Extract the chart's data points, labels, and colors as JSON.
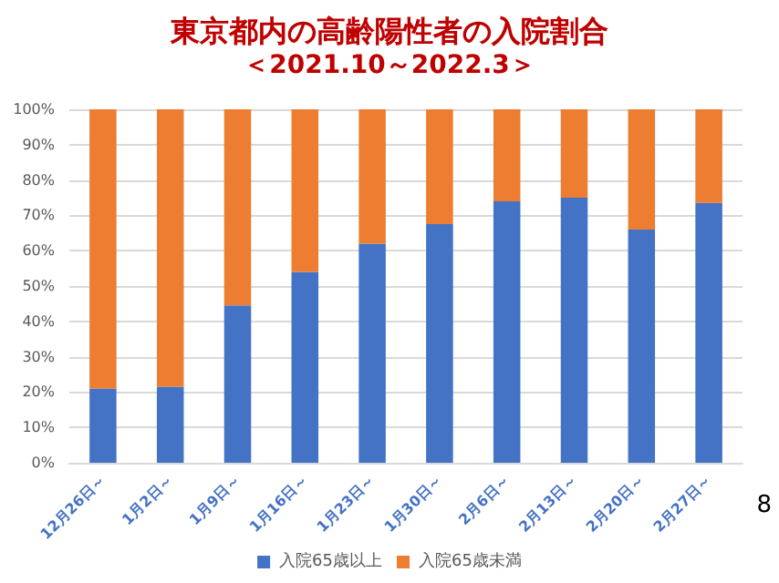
{
  "chart_data": {
    "type": "bar",
    "title": "東京都内の高齢陽性者の入院割合",
    "subtitle": "＜2021.10～2022.3＞",
    "categories": [
      "12月26日～",
      "1月2日～",
      "1月9日～",
      "1月16日～",
      "1月23日～",
      "1月30日～",
      "2月6日～",
      "2月13日～",
      "2月20日～",
      "2月27日～"
    ],
    "series": [
      {
        "name": "入院65歳以上",
        "color": "#4472c4",
        "values": [
          21,
          21.5,
          44.5,
          54,
          62,
          67.5,
          74,
          75,
          66,
          73.5
        ]
      },
      {
        "name": "入院65歳未満",
        "color": "#ed7d31",
        "values": [
          79,
          78.5,
          55.5,
          46,
          38,
          32.5,
          26,
          25,
          34,
          26.5
        ]
      }
    ],
    "stacked": true,
    "ylim": [
      0,
      100
    ],
    "yticks": [
      {
        "value": 0,
        "label": "0%"
      },
      {
        "value": 10,
        "label": "10%"
      },
      {
        "value": 20,
        "label": "20%"
      },
      {
        "value": 30,
        "label": "30%"
      },
      {
        "value": 40,
        "label": "40%"
      },
      {
        "value": 50,
        "label": "50%"
      },
      {
        "value": 60,
        "label": "60%"
      },
      {
        "value": 70,
        "label": "70%"
      },
      {
        "value": 80,
        "label": "80%"
      },
      {
        "value": 90,
        "label": "90%"
      },
      {
        "value": 100,
        "label": "100%"
      }
    ],
    "grid": "y",
    "legend": "bottom",
    "annotations": [
      "8"
    ]
  }
}
